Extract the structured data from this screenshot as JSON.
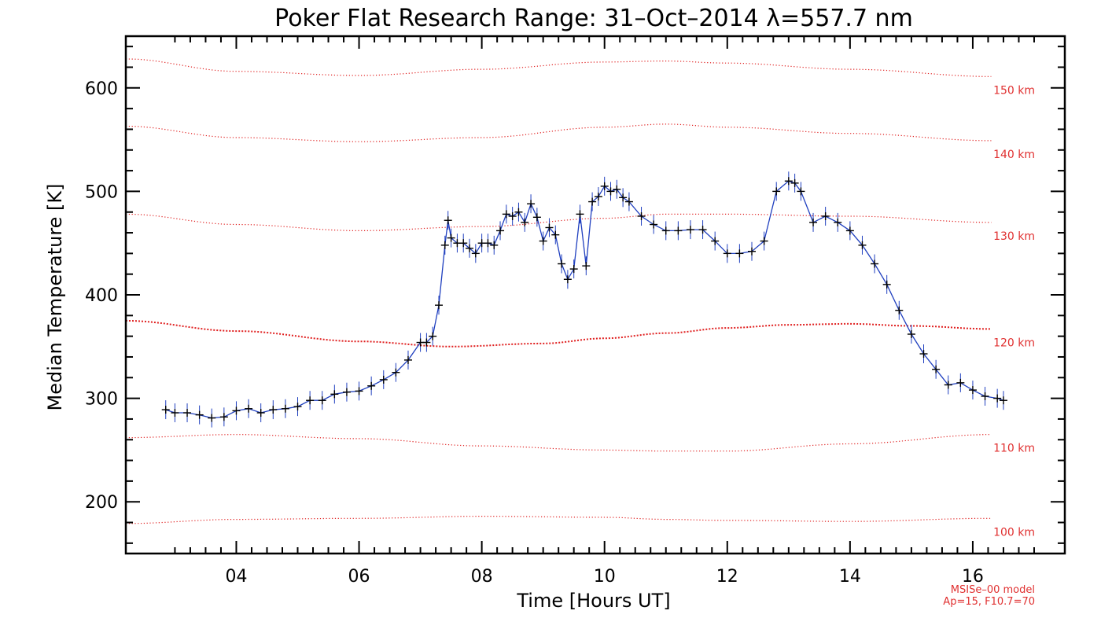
{
  "chart_data": {
    "type": "line",
    "title": "Poker Flat Research Range: 31–Oct–2014 λ=557.7 nm",
    "xlabel": "Time [Hours UT]",
    "ylabel": "Median Temperature [K]",
    "xlim": [
      2.2,
      17.5
    ],
    "ylim": [
      150,
      650
    ],
    "xticks": [
      {
        "value": 4,
        "label": "04"
      },
      {
        "value": 6,
        "label": "06"
      },
      {
        "value": 8,
        "label": "08"
      },
      {
        "value": 10,
        "label": "10"
      },
      {
        "value": 12,
        "label": "12"
      },
      {
        "value": 14,
        "label": "14"
      },
      {
        "value": 16,
        "label": "16"
      }
    ],
    "yticks": [
      200,
      300,
      400,
      500,
      600
    ],
    "grid": false,
    "colors": {
      "data_line": "#1f3fbf",
      "data_marker": "#000000",
      "model": "#e02020",
      "axes": "#000000"
    },
    "series": [
      {
        "x": [
          2.85,
          3.0,
          3.2,
          3.4,
          3.6,
          3.8,
          4.0,
          4.2,
          4.4,
          4.6,
          4.8,
          5.0,
          5.2,
          5.4,
          5.6,
          5.8,
          6.0,
          6.2,
          6.4,
          6.6,
          6.8,
          7.0,
          7.1,
          7.2,
          7.3,
          7.4,
          7.45,
          7.5,
          7.6,
          7.7,
          7.8,
          7.9,
          8.0,
          8.1,
          8.2,
          8.3,
          8.4,
          8.5,
          8.6,
          8.7,
          8.8,
          8.9,
          9.0,
          9.1,
          9.2,
          9.3,
          9.4,
          9.5,
          9.6,
          9.7,
          9.8,
          9.9,
          10.0,
          10.1,
          10.2,
          10.3,
          10.4,
          10.6,
          10.8,
          11.0,
          11.2,
          11.4,
          11.6,
          11.8,
          12.0,
          12.2,
          12.4,
          12.6,
          12.8,
          13.0,
          13.1,
          13.2,
          13.4,
          13.6,
          13.8,
          14.0,
          14.2,
          14.4,
          14.6,
          14.8,
          15.0,
          15.2,
          15.4,
          15.6,
          15.8,
          16.0,
          16.2,
          16.4,
          16.5
        ],
        "y": [
          289,
          286,
          286,
          284,
          281,
          282,
          288,
          290,
          286,
          289,
          290,
          292,
          298,
          298,
          304,
          306,
          307,
          312,
          318,
          325,
          337,
          354,
          354,
          360,
          390,
          448,
          472,
          455,
          450,
          450,
          445,
          440,
          450,
          450,
          448,
          462,
          478,
          476,
          480,
          470,
          488,
          475,
          452,
          465,
          458,
          430,
          415,
          425,
          478,
          428,
          490,
          495,
          505,
          500,
          502,
          494,
          490,
          476,
          468,
          462,
          462,
          463,
          463,
          452,
          440,
          440,
          442,
          452,
          500,
          510,
          508,
          500,
          470,
          476,
          470,
          462,
          448,
          430,
          410,
          385,
          362,
          343,
          328,
          313,
          315,
          308,
          302,
          300,
          298
        ]
      }
    ],
    "model_curves": [
      {
        "label": "150 km",
        "x": [
          2.2,
          4,
          6,
          8,
          10,
          11,
          12,
          14,
          16.3
        ],
        "y": [
          628,
          616,
          612,
          618,
          625,
          626,
          624,
          618,
          611
        ]
      },
      {
        "label": "140 km",
        "x": [
          2.2,
          4,
          6,
          8,
          10,
          11,
          12,
          14,
          16.3
        ],
        "y": [
          563,
          552,
          548,
          552,
          562,
          565,
          562,
          556,
          549
        ]
      },
      {
        "label": "130 km",
        "x": [
          2.2,
          4,
          6,
          8,
          10,
          11,
          12,
          14,
          16.3
        ],
        "y": [
          478,
          468,
          462,
          466,
          474,
          478,
          478,
          476,
          470
        ]
      },
      {
        "label": "120 km",
        "x": [
          2.2,
          4,
          6,
          7.5,
          9,
          10,
          11,
          12,
          13,
          14,
          15,
          16.3
        ],
        "y": [
          375,
          365,
          355,
          350,
          353,
          358,
          363,
          368,
          371,
          372,
          370,
          367
        ]
      },
      {
        "label": "110 km",
        "x": [
          2.2,
          4,
          6,
          8,
          10,
          11,
          12,
          14,
          16.3
        ],
        "y": [
          262,
          265,
          261,
          254,
          250,
          249,
          249,
          256,
          265
        ]
      },
      {
        "label": "100 km",
        "x": [
          2.2,
          4,
          6,
          8,
          10,
          11,
          12,
          14,
          16.3
        ],
        "y": [
          179,
          183,
          184,
          186,
          185,
          183,
          182,
          181,
          184
        ]
      }
    ],
    "model_note": [
      "MSISe–00 model",
      "Ap=15, F10.7=70"
    ]
  }
}
